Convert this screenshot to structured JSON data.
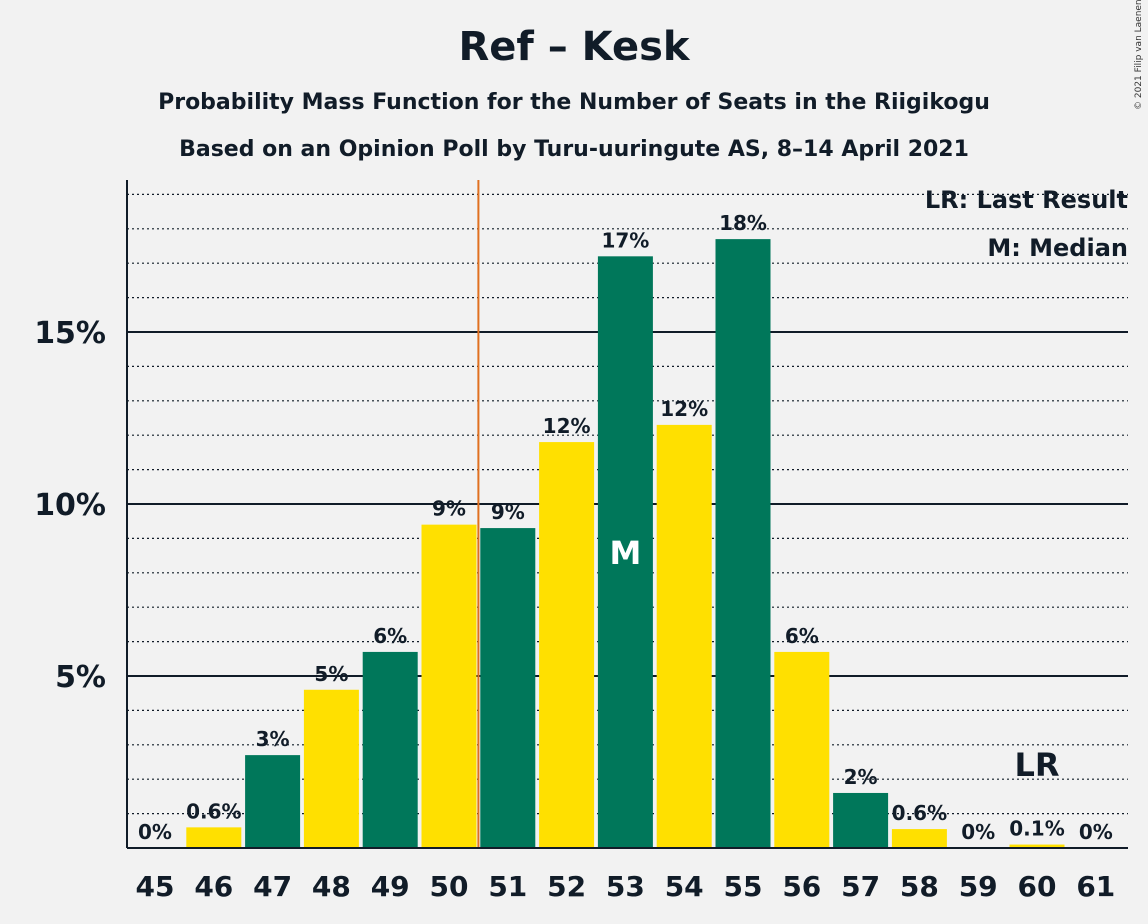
{
  "header": {
    "title": "Ref – Kesk",
    "subtitle": "Probability Mass Function for the Number of Seats in the Riigikogu",
    "source": "Based on an Opinion Poll by Turu-uuringute AS, 8–14 April 2021",
    "copyright": "© 2021 Filip van Laenen"
  },
  "legend": {
    "lr": "LR: Last Result",
    "m": "M: Median"
  },
  "colors": {
    "green": "#00775a",
    "yellow": "#ffe000",
    "median_line": "#e07020",
    "axis": "#111c28"
  },
  "chart_data": {
    "type": "bar",
    "categories": [
      "45",
      "46",
      "47",
      "48",
      "49",
      "50",
      "51",
      "52",
      "53",
      "54",
      "55",
      "56",
      "57",
      "58",
      "59",
      "60",
      "61"
    ],
    "values": [
      0,
      0.6,
      2.7,
      4.6,
      5.7,
      9.4,
      9.3,
      11.8,
      17.2,
      12.3,
      17.7,
      5.7,
      1.6,
      0.55,
      0,
      0.1,
      0
    ],
    "labels": [
      "0%",
      "0.6%",
      "3%",
      "5%",
      "6%",
      "9%",
      "9%",
      "12%",
      "17%",
      "12%",
      "18%",
      "6%",
      "2%",
      "0.6%",
      "0%",
      "0.1%",
      "0%"
    ],
    "y_ticks": [
      {
        "value": 5,
        "label": "5%"
      },
      {
        "value": 10,
        "label": "10%"
      },
      {
        "value": 15,
        "label": "15%"
      }
    ],
    "ylim": [
      0,
      19.5
    ],
    "median_category": "53",
    "median_mark": "M",
    "last_result_category": "60",
    "last_result_mark": "LR",
    "majority_line_after": "50",
    "grid": true
  }
}
